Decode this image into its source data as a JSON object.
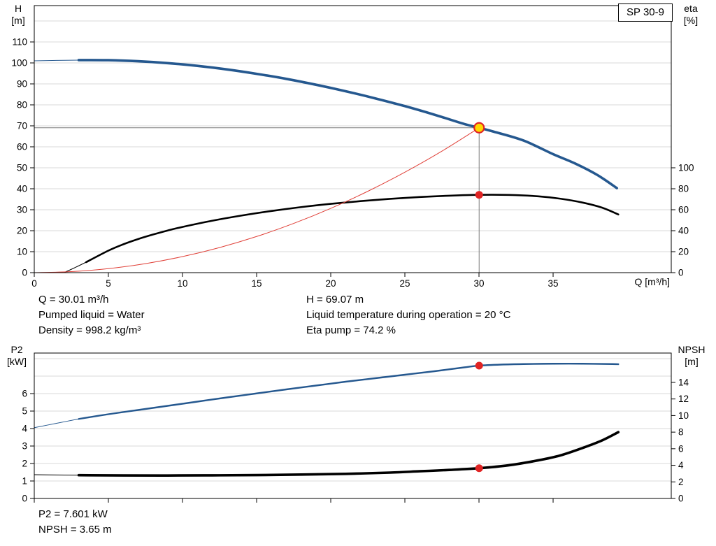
{
  "labels": {
    "pump_name": "SP 30-9",
    "h_axis_1": "H",
    "h_axis_2": "[m]",
    "eta_axis_1": "eta",
    "eta_axis_2": "[%]",
    "q_axis": "Q [m³/h]",
    "p2_axis_1": "P2",
    "p2_axis_2": "[kW]",
    "npsh_axis_1": "NPSH",
    "npsh_axis_2": "[m]"
  },
  "info": {
    "q": "Q = 30.01 m³/h",
    "pumped_liquid": "Pumped liquid = Water",
    "density": "Density = 998.2 kg/m³",
    "h": "H = 69.07 m",
    "liquid_temp": "Liquid temperature during operation = 20 °C",
    "eta_pump": "Eta pump = 74.2 %",
    "p2": "P2 = 7.601 kW",
    "npsh": "NPSH = 3.65 m"
  },
  "colors": {
    "curve_blue": "#25588f",
    "curve_black": "#000000",
    "curve_red": "#e04038",
    "marker_red": "#e02424",
    "marker_yellow": "#ffd800",
    "crosshair_gray": "#7a7a7a",
    "grid_gray": "#d8d8d8"
  },
  "chart_data": [
    {
      "type": "line",
      "title": "SP 30-9",
      "x_axis": {
        "label": "Q [m³/h]",
        "min": 0,
        "max": 42.97,
        "ticks": [
          0,
          5,
          10,
          15,
          20,
          25,
          30,
          35
        ],
        "show_tick_labels": true
      },
      "y_left": {
        "label": "H [m]",
        "min": 0,
        "max": 127.33,
        "ticks": [
          0,
          10,
          20,
          30,
          40,
          50,
          60,
          70,
          80,
          90,
          100,
          110
        ],
        "grid": [
          10,
          20,
          30,
          40,
          50,
          60,
          70,
          80,
          90,
          100,
          110,
          120
        ]
      },
      "y_right": {
        "label": "eta [%]",
        "min": 0,
        "max": 254.67,
        "ticks": [
          0,
          20,
          40,
          60,
          80,
          100
        ]
      },
      "grid_color": "#d8d8d8",
      "crosshair": {
        "q": 30.01,
        "value": 69.07,
        "axis": "left",
        "color": "#7a7a7a"
      },
      "series": [
        {
          "name": "head-curve",
          "axis": "left",
          "color": "#25588f",
          "width": 3.6,
          "thin_until": 3,
          "points": [
            [
              0,
              101.0
            ],
            [
              1.5,
              101.2
            ],
            [
              3,
              101.35
            ],
            [
              5,
              101.3
            ],
            [
              7,
              100.8
            ],
            [
              9,
              99.9
            ],
            [
              11,
              98.6
            ],
            [
              13,
              96.9
            ],
            [
              15,
              94.8
            ],
            [
              17,
              92.4
            ],
            [
              19,
              89.6
            ],
            [
              21,
              86.5
            ],
            [
              23,
              83.1
            ],
            [
              25,
              79.4
            ],
            [
              27,
              75.3
            ],
            [
              29,
              70.9
            ],
            [
              30.01,
              69.07
            ],
            [
              31,
              67.2
            ],
            [
              33,
              63.0
            ],
            [
              35,
              56.5
            ],
            [
              36.5,
              52.0
            ],
            [
              38,
              46.5
            ],
            [
              39.3,
              40.3
            ]
          ]
        },
        {
          "name": "efficiency-curve",
          "axis": "right",
          "color": "#000000",
          "width": 2.6,
          "thin_until": 3.5,
          "points": [
            [
              2,
              0
            ],
            [
              2.7,
              4.5
            ],
            [
              3.5,
              10
            ],
            [
              5,
              21
            ],
            [
              6,
              27
            ],
            [
              7,
              32
            ],
            [
              8,
              36.3
            ],
            [
              9,
              40.2
            ],
            [
              10,
              43.6
            ],
            [
              12,
              49.5
            ],
            [
              14,
              54.5
            ],
            [
              16,
              58.8
            ],
            [
              18,
              62.5
            ],
            [
              20,
              65.6
            ],
            [
              22,
              68.2
            ],
            [
              24,
              70.4
            ],
            [
              26,
              72.1
            ],
            [
              28,
              73.4
            ],
            [
              30.01,
              74.2
            ],
            [
              32,
              74.1
            ],
            [
              34,
              72.8
            ],
            [
              35.5,
              70.5
            ],
            [
              37,
              66.8
            ],
            [
              38.3,
              62.0
            ],
            [
              39.4,
              55.5
            ]
          ]
        },
        {
          "name": "system-curve",
          "axis": "left",
          "color": "#e04038",
          "width": 1,
          "points": [
            [
              0,
              0
            ],
            [
              2.5,
              0.48
            ],
            [
              5,
              1.92
            ],
            [
              7.5,
              4.31
            ],
            [
              10,
              7.66
            ],
            [
              12.5,
              11.97
            ],
            [
              15,
              17.24
            ],
            [
              17.5,
              23.47
            ],
            [
              20,
              30.65
            ],
            [
              22.5,
              38.79
            ],
            [
              25,
              47.89
            ],
            [
              27.5,
              57.94
            ],
            [
              30.01,
              69.07
            ]
          ]
        }
      ],
      "markers": [
        {
          "name": "duty-point",
          "q": 30.01,
          "value": 69.07,
          "axis": "left",
          "r": 7,
          "fill": "#ffd800",
          "stroke": "#e02424",
          "stroke_width": 2.2
        },
        {
          "name": "efficiency-point",
          "q": 30.01,
          "value": 74.2,
          "axis": "right",
          "r": 5.5,
          "fill": "#e02424"
        }
      ],
      "duty_point": {
        "q_m3h": 30.01,
        "h_m": 69.07,
        "eta_pct": 74.2
      }
    },
    {
      "type": "line",
      "title": "P2 / NPSH",
      "x_axis": {
        "label": "",
        "min": 0,
        "max": 42.97,
        "ticks": [
          0,
          5,
          10,
          15,
          20,
          25,
          30,
          35
        ],
        "show_tick_labels": false
      },
      "y_left": {
        "label": "P2 [kW]",
        "min": 0,
        "max": 8.32,
        "ticks": [
          0,
          1,
          2,
          3,
          4,
          5,
          6
        ],
        "grid": [
          1,
          2,
          3,
          4,
          5,
          6,
          7,
          8
        ]
      },
      "y_right": {
        "label": "NPSH [m]",
        "min": 0,
        "max": 17.54,
        "ticks": [
          0,
          2,
          4,
          6,
          8,
          10,
          12,
          14
        ]
      },
      "grid_color": "#d8d8d8",
      "series": [
        {
          "name": "power-curve",
          "axis": "left",
          "color": "#25588f",
          "width": 2.4,
          "thin_until": 3,
          "points": [
            [
              0,
              4.05
            ],
            [
              1.5,
              4.3
            ],
            [
              3,
              4.55
            ],
            [
              5,
              4.82
            ],
            [
              7,
              5.06
            ],
            [
              9,
              5.3
            ],
            [
              11,
              5.54
            ],
            [
              13,
              5.78
            ],
            [
              15,
              6.01
            ],
            [
              17,
              6.24
            ],
            [
              19,
              6.46
            ],
            [
              21,
              6.68
            ],
            [
              23,
              6.88
            ],
            [
              25,
              7.08
            ],
            [
              27,
              7.28
            ],
            [
              29,
              7.5
            ],
            [
              30.01,
              7.601
            ],
            [
              31.5,
              7.66
            ],
            [
              33,
              7.69
            ],
            [
              35,
              7.71
            ],
            [
              37,
              7.71
            ],
            [
              39,
              7.69
            ],
            [
              39.4,
              7.68
            ]
          ]
        },
        {
          "name": "npsh-curve",
          "axis": "right",
          "color": "#000000",
          "width": 3.6,
          "thin_until": 3,
          "points": [
            [
              0,
              2.87
            ],
            [
              1.5,
              2.84
            ],
            [
              3,
              2.81
            ],
            [
              6,
              2.78
            ],
            [
              9,
              2.77
            ],
            [
              12,
              2.79
            ],
            [
              15,
              2.82
            ],
            [
              18,
              2.88
            ],
            [
              21,
              2.97
            ],
            [
              24,
              3.12
            ],
            [
              26,
              3.28
            ],
            [
              28,
              3.44
            ],
            [
              30.01,
              3.65
            ],
            [
              32,
              4.0
            ],
            [
              34,
              4.6
            ],
            [
              35.5,
              5.2
            ],
            [
              37,
              6.1
            ],
            [
              38.3,
              7.0
            ],
            [
              39.4,
              8.0
            ]
          ]
        }
      ],
      "markers": [
        {
          "name": "power-point",
          "q": 30.01,
          "value": 7.601,
          "axis": "left",
          "r": 5.5,
          "fill": "#e02424"
        },
        {
          "name": "npsh-point",
          "q": 30.01,
          "value": 3.65,
          "axis": "right",
          "r": 5.5,
          "fill": "#e02424"
        }
      ],
      "duty_point": {
        "q_m3h": 30.01,
        "p2_kw": 7.601,
        "npsh_m": 3.65
      }
    }
  ]
}
